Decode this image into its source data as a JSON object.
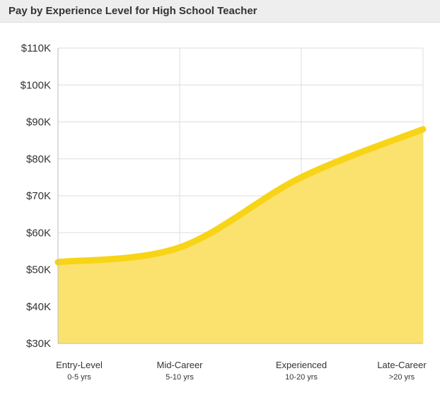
{
  "chart_data": {
    "type": "area",
    "title": "Pay by Experience Level for High School Teacher",
    "categories": [
      "Entry-Level",
      "Mid-Career",
      "Experienced",
      "Late-Career"
    ],
    "category_sublabels": [
      "0-5 yrs",
      "5-10 yrs",
      "10-20 yrs",
      ">20 yrs"
    ],
    "values": [
      52000,
      56000,
      75000,
      88000
    ],
    "ylim": [
      30000,
      110000
    ],
    "yticks": [
      30000,
      40000,
      50000,
      60000,
      70000,
      80000,
      90000,
      100000,
      110000
    ],
    "ytick_labels": [
      "$30K",
      "$40K",
      "$50K",
      "$60K",
      "$70K",
      "$80K",
      "$90K",
      "$100K",
      "$110K"
    ],
    "grid": true,
    "colors": {
      "line": "#f7d416",
      "fill": "#fbe26e",
      "grid": "#dddddd",
      "axis": "#bbbbbb"
    }
  }
}
